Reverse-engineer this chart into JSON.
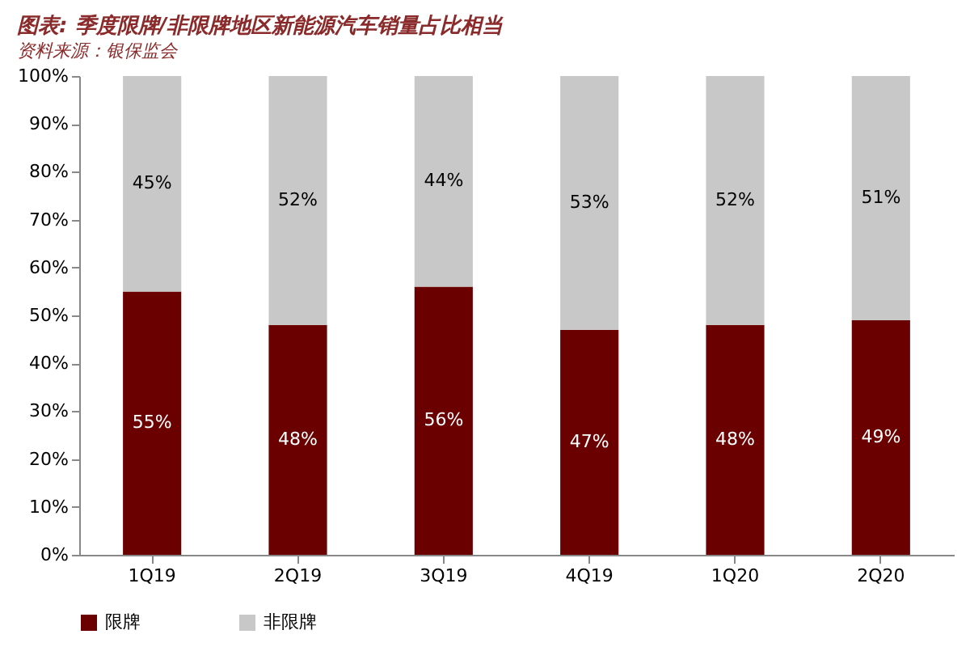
{
  "chart_data": {
    "type": "bar",
    "stacked": true,
    "title": "图表: 季度限牌/非限牌地区新能源汽车销量占比相当",
    "categories": [
      "1Q19",
      "2Q19",
      "3Q19",
      "4Q19",
      "1Q20",
      "2Q20"
    ],
    "series": [
      {
        "name": "限牌",
        "color": "#6b0000",
        "values": [
          55,
          48,
          56,
          47,
          48,
          49
        ],
        "value_labels": [
          "55%",
          "48%",
          "56%",
          "47%",
          "48%",
          "49%"
        ]
      },
      {
        "name": "非限牌",
        "color": "#c8c8c8",
        "values": [
          45,
          52,
          44,
          53,
          52,
          51
        ],
        "value_labels": [
          "45%",
          "52%",
          "44%",
          "53%",
          "52%",
          "51%"
        ]
      }
    ],
    "ylim": [
      0,
      100
    ],
    "yticks": [
      {
        "value": 0,
        "label": "0%"
      },
      {
        "value": 10,
        "label": "10%"
      },
      {
        "value": 20,
        "label": "20%"
      },
      {
        "value": 30,
        "label": "30%"
      },
      {
        "value": 40,
        "label": "40%"
      },
      {
        "value": 50,
        "label": "50%"
      },
      {
        "value": 60,
        "label": "60%"
      },
      {
        "value": 70,
        "label": "70%"
      },
      {
        "value": 80,
        "label": "80%"
      },
      {
        "value": 90,
        "label": "90%"
      },
      {
        "value": 100,
        "label": "100%"
      }
    ],
    "grid": false,
    "legend": "bottom",
    "annotations": [
      "资料来源：银保监会"
    ]
  }
}
